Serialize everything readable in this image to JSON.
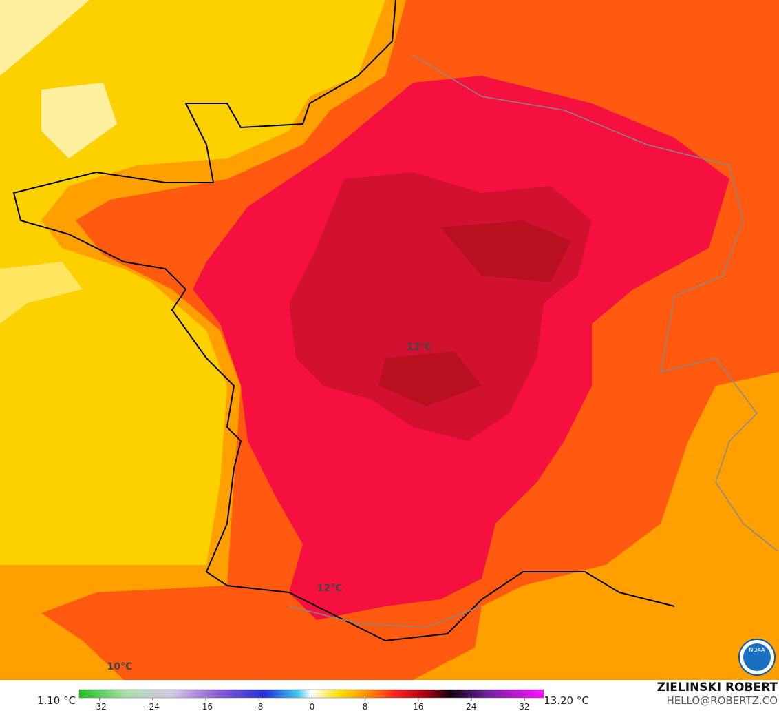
{
  "map": {
    "labels": [
      {
        "text": "13°C"
      },
      {
        "text": "12°C"
      },
      {
        "text": "10°C"
      }
    ]
  },
  "legend": {
    "min_label": "1.10 °C",
    "max_label": "13.20 °C",
    "ticks": [
      -32,
      -24,
      -16,
      -8,
      0,
      8,
      16,
      24,
      32
    ]
  },
  "credit": {
    "name": "ZIELINSKI ROBERT",
    "email": "HELLO@ROBERTZ.CO"
  },
  "logo": "NOAA"
}
